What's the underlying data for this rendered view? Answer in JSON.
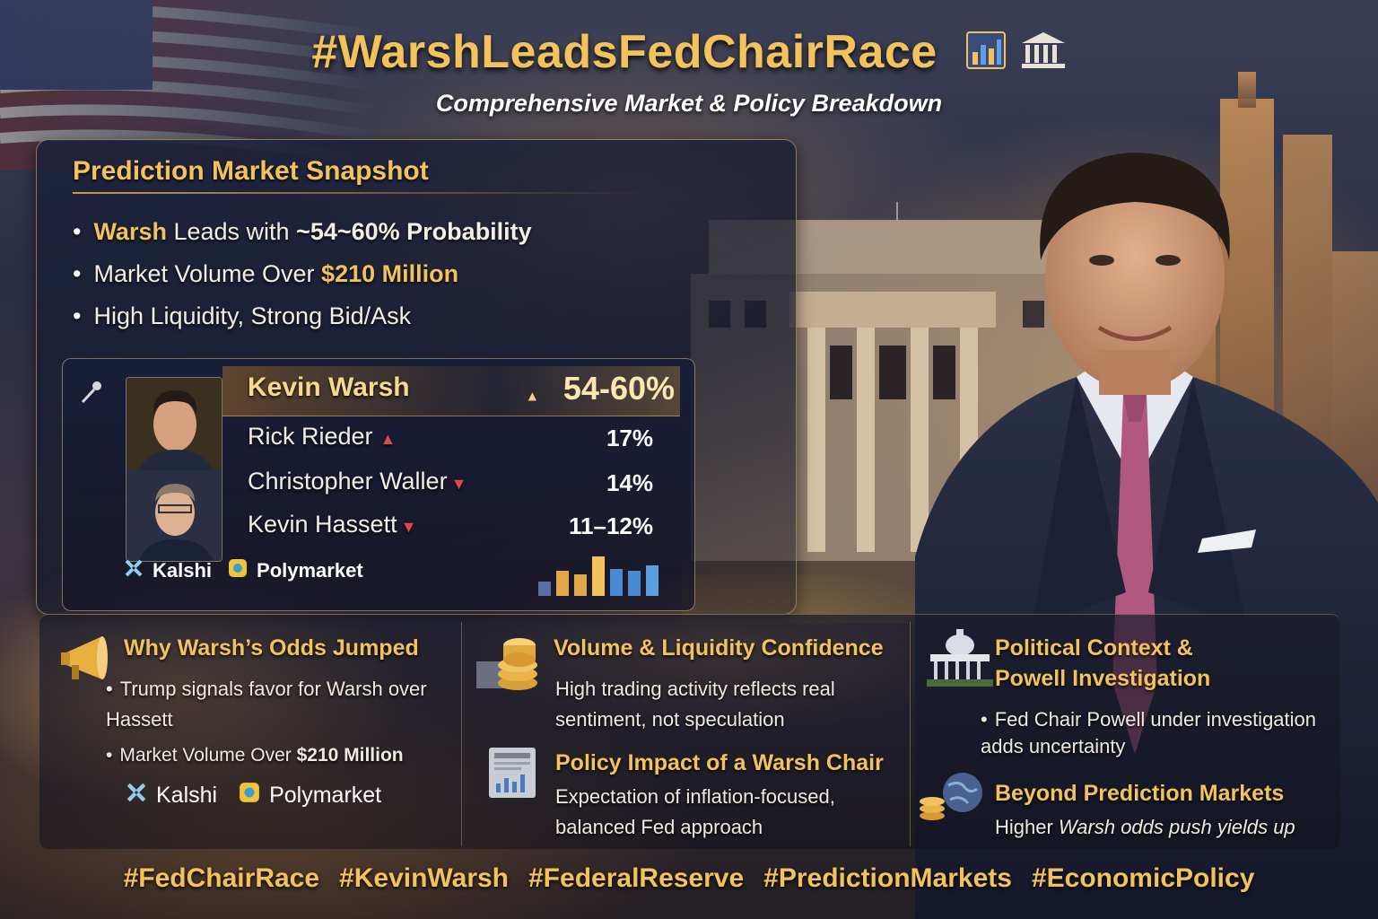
{
  "header": {
    "title": "#WarshLeadsFedChairRace",
    "subtitle": "Comprehensive Market & Policy Breakdown",
    "icons": [
      "bar-chart-icon",
      "bank-icon"
    ]
  },
  "snapshot": {
    "title": "Prediction Market Snapshot",
    "bullets": [
      {
        "strong": "Warsh",
        "text": " Leads with ",
        "strong2": "~54~60% Probability"
      },
      {
        "text": "Market Volume Over ",
        "strong": "$210 Million"
      },
      {
        "text": "High Liquidity, Strong Bid/Ask"
      }
    ],
    "candidates": [
      {
        "name": "Kevin Warsh",
        "pct": "54-60%",
        "trend": "up"
      },
      {
        "name": "Rick Rieder",
        "pct": "17%",
        "trend": "up"
      },
      {
        "name": "Christopher Waller",
        "pct": "14%",
        "trend": "down"
      },
      {
        "name": "Kevin Hassett",
        "pct": "11–12%",
        "trend": "down"
      }
    ],
    "sources": [
      "Kalshi",
      "Polymarket"
    ]
  },
  "columns": {
    "why": {
      "title": "Why Warsh’s Odds Jumped",
      "bullet1": "Trump signals favor for Warsh over Hassett",
      "bullet2_text": "Market Volume Over ",
      "bullet2_strong": "$210 Million",
      "sources": [
        "Kalshi",
        "Polymarket"
      ]
    },
    "volume": {
      "title": "Volume & Liquidity Confidence",
      "text": "High trading activity reflects real sentiment, not speculation"
    },
    "policy": {
      "title": "Policy Impact of a Warsh Chair",
      "text": "Expectation of inflation-focused, balanced Fed approach"
    },
    "political": {
      "title_line1": "Political Context &",
      "title_line2": "Powell Investigation",
      "bullet": "Fed Chair Powell under investigation adds uncertainty"
    },
    "beyond": {
      "title": "Beyond Prediction Markets",
      "text_plain": "Higher ",
      "text_italic": "Warsh odds push yields up"
    }
  },
  "hashtags": [
    "#FedChairRace",
    "#KevinWarsh",
    "#FederalReserve",
    "#PredictionMarkets",
    "#EconomicPolicy"
  ],
  "colors": {
    "accent_gold": "#f2c25c",
    "arrow_red": "#e2454a",
    "panel_navy": "#1c223a"
  }
}
